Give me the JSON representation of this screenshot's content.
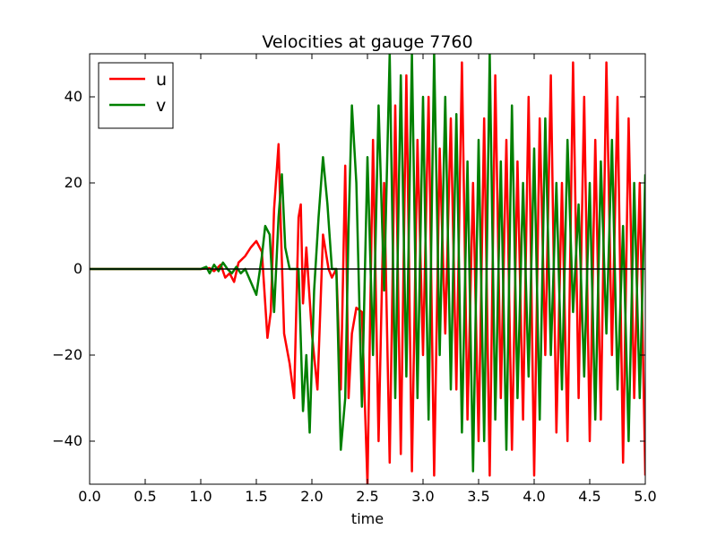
{
  "chart_data": {
    "type": "line",
    "title": "Velocities at gauge 7760",
    "xlabel": "time",
    "ylabel": "",
    "xlim": [
      0.0,
      5.0
    ],
    "ylim": [
      -50,
      50
    ],
    "xticks": [
      0.0,
      0.5,
      1.0,
      1.5,
      2.0,
      2.5,
      3.0,
      3.5,
      4.0,
      4.5,
      5.0
    ],
    "xtick_labels": [
      "0.0",
      "0.5",
      "1.0",
      "1.5",
      "2.0",
      "2.5",
      "3.0",
      "3.5",
      "4.0",
      "4.5",
      "5.0"
    ],
    "yticks": [
      -40,
      -20,
      0,
      20,
      40
    ],
    "ytick_labels": [
      "−40",
      "−20",
      "0",
      "20",
      "40"
    ],
    "grid": false,
    "legend": "top-left",
    "zero_line": true,
    "series": [
      {
        "name": "u",
        "color": "#ff0000",
        "x": [
          0.0,
          0.5,
          1.0,
          1.08,
          1.12,
          1.18,
          1.22,
          1.26,
          1.3,
          1.34,
          1.4,
          1.45,
          1.5,
          1.55,
          1.6,
          1.63,
          1.66,
          1.7,
          1.72,
          1.75,
          1.8,
          1.84,
          1.88,
          1.9,
          1.92,
          1.95,
          2.0,
          2.05,
          2.1,
          2.15,
          2.18,
          2.22,
          2.26,
          2.3,
          2.33,
          2.36,
          2.4,
          2.45,
          2.5,
          2.55,
          2.6,
          2.65,
          2.7,
          2.75,
          2.8,
          2.85,
          2.9,
          2.95,
          3.0,
          3.05,
          3.1,
          3.15,
          3.2,
          3.25,
          3.3,
          3.35,
          3.4,
          3.45,
          3.5,
          3.55,
          3.6,
          3.65,
          3.7,
          3.75,
          3.8,
          3.85,
          3.9,
          3.95,
          4.0,
          4.05,
          4.1,
          4.15,
          4.2,
          4.25,
          4.3,
          4.35,
          4.4,
          4.45,
          4.5,
          4.55,
          4.6,
          4.65,
          4.7,
          4.75,
          4.8,
          4.85,
          4.9,
          4.95,
          5.0
        ],
        "y": [
          0.0,
          0.0,
          0.0,
          0.2,
          -0.5,
          1.0,
          -2.0,
          -1.0,
          -3.0,
          1.5,
          3.0,
          5.0,
          6.5,
          4.0,
          -16.0,
          -10.0,
          14.0,
          29.0,
          10.0,
          -15.0,
          -22.0,
          -30.0,
          12.0,
          15.0,
          -8.0,
          5.0,
          -15.0,
          -28.0,
          8.0,
          0.0,
          -2.0,
          0.0,
          -28.0,
          24.0,
          -30.0,
          -15.0,
          -9.0,
          -10.0,
          -50.0,
          30.0,
          -40.0,
          20.0,
          -45.0,
          38.0,
          -43.0,
          45.0,
          -47.0,
          30.0,
          -20.0,
          40.0,
          -48.0,
          28.0,
          -15.0,
          35.0,
          -28.0,
          48.0,
          -35.0,
          20.0,
          -40.0,
          35.0,
          -48.0,
          45.0,
          -30.0,
          30.0,
          -42.0,
          25.0,
          -35.0,
          40.0,
          -48.0,
          35.0,
          -20.0,
          45.0,
          -38.0,
          20.0,
          -40.0,
          48.0,
          -30.0,
          40.0,
          -40.0,
          30.0,
          -35.0,
          48.0,
          -20.0,
          40.0,
          -45.0,
          35.0,
          -30.0,
          20.0,
          -48.0
        ]
      },
      {
        "name": "v",
        "color": "#008000",
        "x": [
          0.0,
          0.5,
          1.0,
          1.05,
          1.08,
          1.12,
          1.16,
          1.2,
          1.24,
          1.28,
          1.32,
          1.36,
          1.4,
          1.45,
          1.5,
          1.55,
          1.58,
          1.62,
          1.66,
          1.7,
          1.73,
          1.76,
          1.8,
          1.84,
          1.88,
          1.92,
          1.95,
          1.98,
          2.02,
          2.06,
          2.1,
          2.14,
          2.18,
          2.22,
          2.26,
          2.3,
          2.33,
          2.36,
          2.4,
          2.45,
          2.5,
          2.55,
          2.6,
          2.65,
          2.7,
          2.75,
          2.8,
          2.85,
          2.9,
          2.95,
          3.0,
          3.05,
          3.1,
          3.15,
          3.2,
          3.25,
          3.3,
          3.35,
          3.4,
          3.45,
          3.5,
          3.55,
          3.6,
          3.65,
          3.7,
          3.75,
          3.8,
          3.85,
          3.9,
          3.95,
          4.0,
          4.05,
          4.1,
          4.15,
          4.2,
          4.25,
          4.3,
          4.35,
          4.4,
          4.45,
          4.5,
          4.55,
          4.6,
          4.65,
          4.7,
          4.75,
          4.8,
          4.85,
          4.9,
          4.95,
          5.0
        ],
        "y": [
          0.0,
          0.0,
          0.0,
          0.5,
          -1.0,
          1.0,
          -0.5,
          1.5,
          0.0,
          -1.0,
          0.5,
          -1.0,
          0.0,
          -3.0,
          -6.0,
          3.0,
          10.0,
          8.0,
          -10.0,
          12.0,
          22.0,
          5.0,
          0.0,
          0.0,
          0.0,
          -33.0,
          -20.0,
          -38.0,
          -5.0,
          12.0,
          26.0,
          15.0,
          0.0,
          0.0,
          -42.0,
          -30.0,
          10.0,
          38.0,
          20.0,
          -32.0,
          26.0,
          -20.0,
          38.0,
          -5.0,
          50.0,
          -30.0,
          45.0,
          -25.0,
          50.0,
          -30.0,
          40.0,
          -35.0,
          50.0,
          -20.0,
          40.0,
          -28.0,
          36.0,
          -38.0,
          25.0,
          -47.0,
          30.0,
          -40.0,
          50.0,
          -35.0,
          25.0,
          -42.0,
          38.0,
          -30.0,
          20.0,
          -25.0,
          28.0,
          -35.0,
          35.0,
          -20.0,
          20.0,
          -28.0,
          30.0,
          -10.0,
          15.0,
          -25.0,
          20.0,
          -35.0,
          25.0,
          -15.0,
          30.0,
          -28.0,
          10.0,
          -40.0,
          20.0,
          -30.0,
          22.0
        ]
      }
    ]
  }
}
